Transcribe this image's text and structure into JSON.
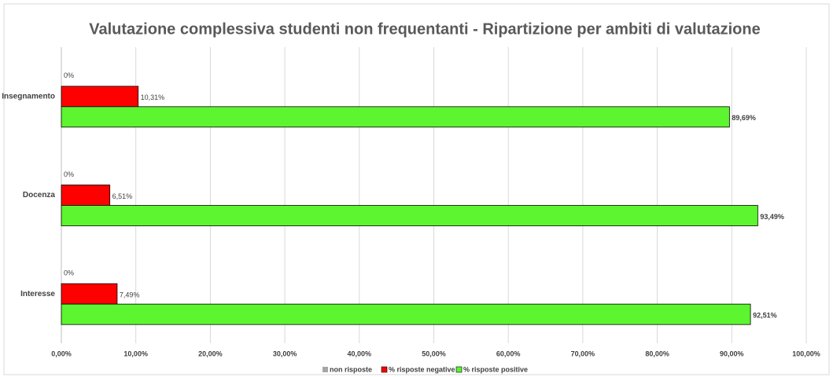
{
  "chart_data": {
    "type": "hbar",
    "title": "Valutazione complessiva studenti non frequentanti - Ripartizione per ambiti di valutazione",
    "categories": [
      "Insegnamento",
      "Docenza",
      "Interesse"
    ],
    "series": [
      {
        "name": "non risposte",
        "color": "#a6a6a6",
        "values": [
          0,
          0,
          0
        ],
        "value_labels": [
          "0%",
          "0%",
          "0%"
        ]
      },
      {
        "name": "% risposte negative",
        "color": "#ff0000",
        "values": [
          10.31,
          6.51,
          7.49
        ],
        "value_labels": [
          "10,31%",
          "6,51%",
          "7,49%"
        ]
      },
      {
        "name": "% risposte positive",
        "color": "#5cf52f",
        "values": [
          89.69,
          93.49,
          92.51
        ],
        "value_labels": [
          "89,69%",
          "93,49%",
          "92,51%"
        ]
      }
    ],
    "xlim": [
      0,
      100
    ],
    "xticks": [
      {
        "value": 0,
        "label": "0,00%"
      },
      {
        "value": 10,
        "label": "10,00%"
      },
      {
        "value": 20,
        "label": "20,00%"
      },
      {
        "value": 30,
        "label": "30,00%"
      },
      {
        "value": 40,
        "label": "40,00%"
      },
      {
        "value": 50,
        "label": "50,00%"
      },
      {
        "value": 60,
        "label": "60,00%"
      },
      {
        "value": 70,
        "label": "70,00%"
      },
      {
        "value": 80,
        "label": "80,00%"
      },
      {
        "value": 90,
        "label": "90,00%"
      },
      {
        "value": 100,
        "label": "100,00%"
      }
    ],
    "grid": true,
    "legend": "bottom"
  }
}
